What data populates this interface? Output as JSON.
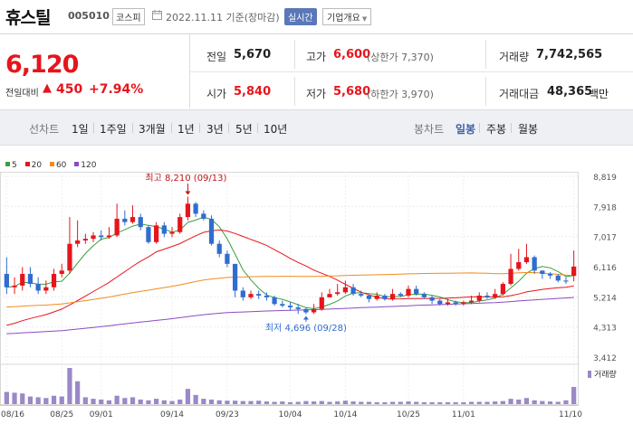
{
  "header": {
    "name": "휴스틸",
    "code": "005010",
    "market": "코스피",
    "date_text": "2022.11.11 기준(장마감)",
    "realtime_label": "실시간",
    "company_label": "기업개요"
  },
  "summary": {
    "price": "6,120",
    "change_label": "전일대비",
    "change_arrow": "▲",
    "change_amount": "450",
    "change_pct": "+7.94%",
    "prev_close_label": "전일",
    "prev_close": "5,670",
    "high_label": "고가",
    "high": "6,600",
    "upper_limit": "(상한가 7,370)",
    "volume_label": "거래량",
    "volume": "7,742,565",
    "open_label": "시가",
    "open": "5,840",
    "low_label": "저가",
    "low": "5,680",
    "lower_limit": "(하한가 3,970)",
    "amount_label": "거래대금",
    "amount": "48,365",
    "amount_unit": "백만"
  },
  "tabs": {
    "line_label": "선차트",
    "periods": [
      "1일",
      "1주일",
      "3개월",
      "1년",
      "3년",
      "5년",
      "10년"
    ],
    "candle_label": "봉차트",
    "candle_periods": [
      "일봉",
      "주봉",
      "월봉"
    ],
    "active_candle": "일봉"
  },
  "legend": [
    {
      "label": "5",
      "color": "#3aa03a"
    },
    {
      "label": "20",
      "color": "#e6151b"
    },
    {
      "label": "60",
      "color": "#f08c1e"
    },
    {
      "label": "120",
      "color": "#8a4cc2"
    }
  ],
  "colors": {
    "up": "#e6151b",
    "down": "#2f6dd0",
    "volume": "#9a88c9"
  },
  "chart_data": {
    "type": "candlestick",
    "yticks": [
      "8,819",
      "7,918",
      "7,017",
      "6,116",
      "5,214",
      "4,313",
      "3,412"
    ],
    "ylim": [
      3412,
      8819
    ],
    "xticks": [
      "08/16",
      "08/25",
      "09/01",
      "09/14",
      "09/23",
      "10/04",
      "10/14",
      "10/25",
      "11/01",
      "11/10"
    ],
    "high_annotation": "최고 8,210 (09/13)",
    "low_annotation": "최저 4,696 (09/28)",
    "volume_label": "거래량",
    "candles": [
      [
        5900,
        5500,
        6400,
        5300
      ],
      [
        5500,
        5550,
        5800,
        5300
      ],
      [
        5550,
        5900,
        6100,
        5400
      ],
      [
        5900,
        5600,
        6100,
        5500
      ],
      [
        5600,
        5400,
        5800,
        5300
      ],
      [
        5400,
        5500,
        5700,
        5300
      ],
      [
        5500,
        5900,
        6050,
        5400
      ],
      [
        5900,
        6000,
        6200,
        5800
      ],
      [
        6000,
        6800,
        7600,
        5900
      ],
      [
        6800,
        6900,
        7500,
        6700
      ],
      [
        6900,
        6950,
        7100,
        6800
      ],
      [
        6950,
        7050,
        7150,
        6850
      ],
      [
        7050,
        7000,
        7200,
        6900
      ],
      [
        7000,
        7050,
        7300,
        6950
      ],
      [
        7050,
        7550,
        8000,
        7000
      ],
      [
        7550,
        7450,
        7800,
        7350
      ],
      [
        7450,
        7600,
        7950,
        7400
      ],
      [
        7600,
        7300,
        7700,
        7200
      ],
      [
        7300,
        6850,
        7350,
        6800
      ],
      [
        6850,
        7350,
        7450,
        6800
      ],
      [
        7350,
        7100,
        7450,
        7000
      ],
      [
        7100,
        7150,
        7300,
        7000
      ],
      [
        7150,
        7600,
        7700,
        7100
      ],
      [
        7600,
        8000,
        8210,
        7500
      ],
      [
        8000,
        7700,
        8050,
        7600
      ],
      [
        7700,
        7550,
        7800,
        7500
      ],
      [
        7550,
        6800,
        7650,
        6750
      ],
      [
        6800,
        6500,
        6900,
        6400
      ],
      [
        6500,
        6200,
        6600,
        6100
      ],
      [
        6200,
        5400,
        5600,
        5200
      ],
      [
        5400,
        5200,
        5500,
        5100
      ],
      [
        5200,
        5300,
        5400,
        5150
      ],
      [
        5300,
        5250,
        5400,
        5150
      ],
      [
        5250,
        5200,
        5350,
        5100
      ],
      [
        5200,
        5000,
        5250,
        4950
      ],
      [
        5000,
        4950,
        5100,
        4900
      ],
      [
        4950,
        4900,
        5050,
        4800
      ],
      [
        4900,
        4850,
        5000,
        4700
      ],
      [
        4850,
        4750,
        4900,
        4696
      ],
      [
        4750,
        4850,
        5000,
        4700
      ],
      [
        4850,
        5200,
        5350,
        4800
      ],
      [
        5200,
        5300,
        5450,
        5200
      ],
      [
        5300,
        5350,
        5600,
        5250
      ],
      [
        5350,
        5500,
        5700,
        5300
      ],
      [
        5500,
        5300,
        5600,
        5250
      ],
      [
        5300,
        5250,
        5400,
        5200
      ],
      [
        5250,
        5150,
        5300,
        5050
      ],
      [
        5150,
        5250,
        5350,
        5100
      ],
      [
        5250,
        5150,
        5300,
        5100
      ],
      [
        5150,
        5300,
        5450,
        5100
      ],
      [
        5300,
        5250,
        5350,
        5200
      ],
      [
        5250,
        5450,
        5550,
        5200
      ],
      [
        5450,
        5300,
        5550,
        5250
      ],
      [
        5300,
        5200,
        5350,
        5150
      ],
      [
        5200,
        5100,
        5250,
        5000
      ],
      [
        5100,
        5000,
        5150,
        4950
      ],
      [
        5000,
        5050,
        5150,
        4950
      ],
      [
        5050,
        5000,
        5100,
        4950
      ],
      [
        5000,
        5050,
        5100,
        4950
      ],
      [
        5050,
        5100,
        5250,
        5000
      ],
      [
        5100,
        5250,
        5350,
        5050
      ],
      [
        5250,
        5200,
        5350,
        5150
      ],
      [
        5200,
        5300,
        5450,
        5150
      ],
      [
        5300,
        5600,
        5650,
        5250
      ],
      [
        5600,
        6050,
        6500,
        5550
      ],
      [
        6050,
        6250,
        6650,
        6000
      ],
      [
        6250,
        6400,
        6800,
        6200
      ],
      [
        6400,
        6000,
        6450,
        5900
      ],
      [
        6000,
        5900,
        6000,
        5750
      ],
      [
        5900,
        5850,
        5950,
        5750
      ],
      [
        5850,
        5700,
        5900,
        5650
      ],
      [
        5700,
        5670,
        5800,
        5600
      ],
      [
        5840,
        6120,
        6600,
        5680
      ]
    ],
    "volumes": [
      32,
      30,
      28,
      20,
      18,
      16,
      22,
      20,
      95,
      60,
      18,
      14,
      12,
      10,
      22,
      16,
      18,
      12,
      10,
      14,
      10,
      8,
      12,
      40,
      24,
      14,
      12,
      10,
      9,
      9,
      8,
      8,
      9,
      7,
      6,
      7,
      5,
      6,
      8,
      7,
      8,
      6,
      7,
      9,
      7,
      6,
      6,
      5,
      5,
      6,
      6,
      7,
      6,
      5,
      5,
      5,
      5,
      5,
      5,
      6,
      6,
      6,
      7,
      8,
      14,
      12,
      16,
      10,
      8,
      7,
      6,
      10,
      45
    ]
  }
}
